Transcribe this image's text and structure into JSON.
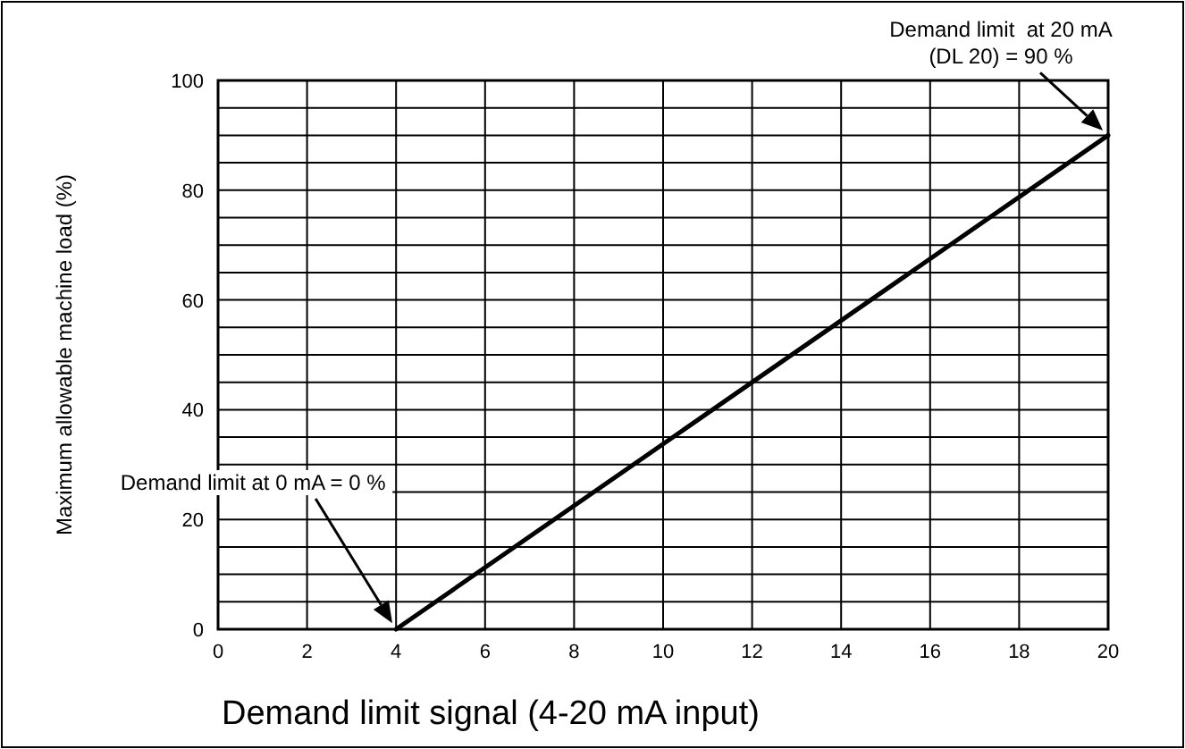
{
  "chart_data": {
    "type": "line",
    "xlabel": "Demand limit signal (4-20 mA input)",
    "ylabel": "Maximum allowable machine load (%)",
    "x": [
      4,
      20
    ],
    "series": [
      {
        "color": "#000000",
        "values": [
          0,
          90
        ]
      }
    ],
    "xlim": [
      0,
      20
    ],
    "xticks": [
      0,
      2,
      4,
      6,
      8,
      10,
      12,
      14,
      16,
      18,
      20
    ],
    "ylim": [
      0,
      100
    ],
    "yticks": [
      0,
      {
        "value": 5,
        "label": null
      },
      {
        "value": 10,
        "label": null
      },
      {
        "value": 15,
        "label": null
      },
      20,
      {
        "value": 25,
        "label": null
      },
      {
        "value": 30,
        "label": null
      },
      {
        "value": 35,
        "label": null
      },
      40,
      {
        "value": 45,
        "label": null
      },
      {
        "value": 50,
        "label": null
      },
      {
        "value": 55,
        "label": null
      },
      60,
      {
        "value": 65,
        "label": null
      },
      {
        "value": 70,
        "label": null
      },
      {
        "value": 75,
        "label": null
      },
      80,
      {
        "value": 85,
        "label": null
      },
      {
        "value": 90,
        "label": null
      },
      {
        "value": 95,
        "label": null
      },
      100
    ],
    "grid": true,
    "marker": "none",
    "line_style": "solid",
    "annotations": [
      "Demand limit at 0 mA = 0 %",
      "Demand limit  at 20 mA\n(DL 20) = 90 %"
    ]
  }
}
